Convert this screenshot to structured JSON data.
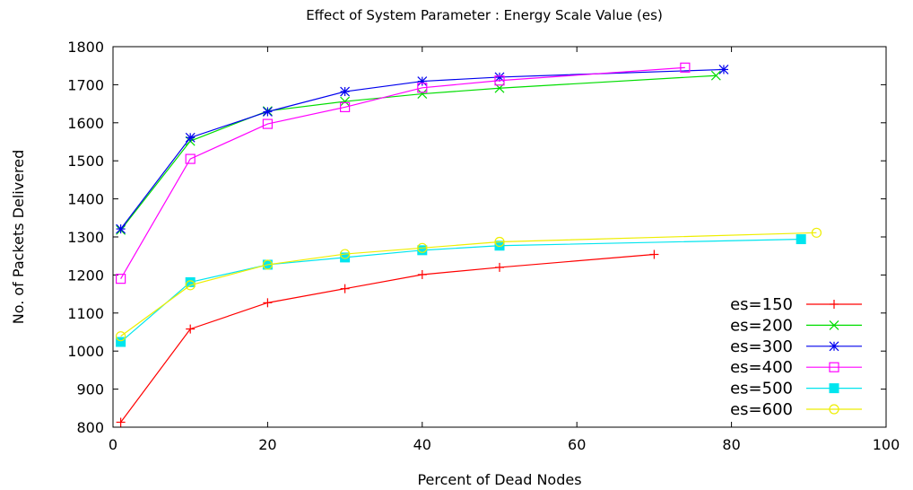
{
  "chart_data": {
    "type": "line",
    "title": "Effect of System Parameter : Energy Scale Value (es)",
    "xlabel": "Percent of Dead Nodes",
    "ylabel": "No. of Packets Delivered",
    "xlim": [
      0,
      100
    ],
    "ylim": [
      800,
      1800
    ],
    "xticks": [
      0,
      20,
      40,
      60,
      80,
      100
    ],
    "yticks": [
      800,
      900,
      1000,
      1100,
      1200,
      1300,
      1400,
      1500,
      1600,
      1700,
      1800
    ],
    "grid": false,
    "legend_position": "bottom-right",
    "series": [
      {
        "name": "es=150",
        "color": "#ff0000",
        "marker": "plus",
        "x": [
          1,
          10,
          20,
          30,
          40,
          50,
          70
        ],
        "y": [
          813,
          1058,
          1127,
          1164,
          1201,
          1220,
          1254
        ]
      },
      {
        "name": "es=200",
        "color": "#00dd00",
        "marker": "cross",
        "x": [
          1,
          10,
          20,
          30,
          40,
          50,
          78
        ],
        "y": [
          1318,
          1552,
          1631,
          1656,
          1676,
          1691,
          1724
        ]
      },
      {
        "name": "es=300",
        "color": "#0000ee",
        "marker": "star",
        "x": [
          1,
          10,
          20,
          30,
          40,
          50,
          79
        ],
        "y": [
          1321,
          1561,
          1629,
          1682,
          1709,
          1720,
          1740
        ]
      },
      {
        "name": "es=400",
        "color": "#ff00ff",
        "marker": "square-open",
        "x": [
          1,
          10,
          20,
          30,
          40,
          50,
          74
        ],
        "y": [
          1190,
          1505,
          1597,
          1641,
          1692,
          1711,
          1745
        ]
      },
      {
        "name": "es=500",
        "color": "#00e5ee",
        "marker": "square-filled",
        "x": [
          1,
          10,
          20,
          30,
          40,
          50,
          89
        ],
        "y": [
          1024,
          1181,
          1227,
          1246,
          1265,
          1277,
          1294
        ]
      },
      {
        "name": "es=600",
        "color": "#eeee00",
        "marker": "circle-open",
        "x": [
          1,
          10,
          20,
          30,
          40,
          50,
          91
        ],
        "y": [
          1039,
          1173,
          1227,
          1255,
          1271,
          1287,
          1311
        ]
      }
    ]
  }
}
